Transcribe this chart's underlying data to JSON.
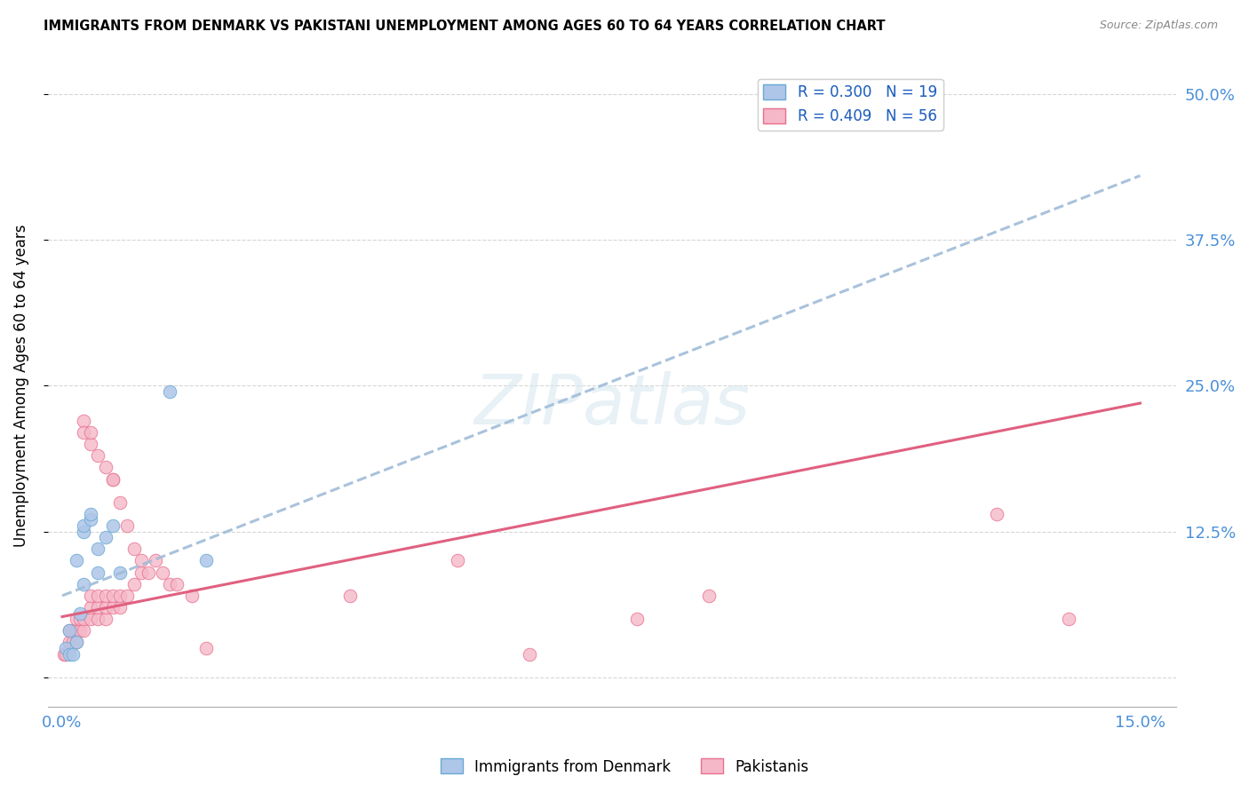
{
  "title": "IMMIGRANTS FROM DENMARK VS PAKISTANI UNEMPLOYMENT AMONG AGES 60 TO 64 YEARS CORRELATION CHART",
  "source": "Source: ZipAtlas.com",
  "ylabel": "Unemployment Among Ages 60 to 64 years",
  "xlim": [
    -0.002,
    0.155
  ],
  "ylim": [
    -0.025,
    0.525
  ],
  "xticks": [
    0.0,
    0.03,
    0.06,
    0.09,
    0.12,
    0.15
  ],
  "xtick_labels": [
    "0.0%",
    "",
    "",
    "",
    "",
    "15.0%"
  ],
  "yticks": [
    0.0,
    0.125,
    0.25,
    0.375,
    0.5
  ],
  "ytick_labels": [
    "",
    "12.5%",
    "25.0%",
    "37.5%",
    "50.0%"
  ],
  "grid_color": "#cccccc",
  "background_color": "#ffffff",
  "watermark": "ZIPatlas",
  "denmark_scatter_color": "#aec6e8",
  "denmark_scatter_edge": "#6aaad4",
  "pakistan_scatter_color": "#f5b8c8",
  "pakistan_scatter_edge": "#e87090",
  "denmark_line_color": "#a0bcd8",
  "pakistan_line_color": "#e06080",
  "denmark_R": 0.3,
  "denmark_N": 19,
  "pakistan_R": 0.409,
  "pakistan_N": 56,
  "denmark_line_x0": 0.0,
  "denmark_line_y0": 0.07,
  "denmark_line_x1": 0.15,
  "denmark_line_y1": 0.43,
  "pakistan_line_x0": 0.0,
  "pakistan_line_y0": 0.052,
  "pakistan_line_x1": 0.15,
  "pakistan_line_y1": 0.235,
  "denmark_x": [
    0.0005,
    0.001,
    0.001,
    0.0015,
    0.002,
    0.002,
    0.0025,
    0.003,
    0.003,
    0.003,
    0.004,
    0.004,
    0.005,
    0.005,
    0.006,
    0.007,
    0.008,
    0.02,
    0.015
  ],
  "denmark_y": [
    0.025,
    0.02,
    0.04,
    0.02,
    0.03,
    0.1,
    0.055,
    0.125,
    0.13,
    0.08,
    0.135,
    0.14,
    0.09,
    0.11,
    0.12,
    0.13,
    0.09,
    0.1,
    0.245
  ],
  "pakistan_x": [
    0.0003,
    0.0005,
    0.001,
    0.001,
    0.001,
    0.0015,
    0.0015,
    0.002,
    0.002,
    0.002,
    0.0025,
    0.0025,
    0.003,
    0.003,
    0.003,
    0.003,
    0.004,
    0.004,
    0.004,
    0.004,
    0.004,
    0.005,
    0.005,
    0.005,
    0.005,
    0.006,
    0.006,
    0.006,
    0.006,
    0.007,
    0.007,
    0.007,
    0.007,
    0.008,
    0.008,
    0.008,
    0.009,
    0.009,
    0.01,
    0.01,
    0.011,
    0.011,
    0.012,
    0.013,
    0.014,
    0.015,
    0.016,
    0.018,
    0.02,
    0.04,
    0.055,
    0.065,
    0.08,
    0.09,
    0.13,
    0.14
  ],
  "pakistan_y": [
    0.02,
    0.02,
    0.025,
    0.03,
    0.04,
    0.03,
    0.04,
    0.03,
    0.04,
    0.05,
    0.04,
    0.05,
    0.04,
    0.05,
    0.22,
    0.21,
    0.05,
    0.06,
    0.07,
    0.2,
    0.21,
    0.05,
    0.06,
    0.07,
    0.19,
    0.05,
    0.06,
    0.07,
    0.18,
    0.06,
    0.07,
    0.17,
    0.17,
    0.06,
    0.07,
    0.15,
    0.07,
    0.13,
    0.08,
    0.11,
    0.09,
    0.1,
    0.09,
    0.1,
    0.09,
    0.08,
    0.08,
    0.07,
    0.025,
    0.07,
    0.1,
    0.02,
    0.05,
    0.07,
    0.14,
    0.05
  ]
}
